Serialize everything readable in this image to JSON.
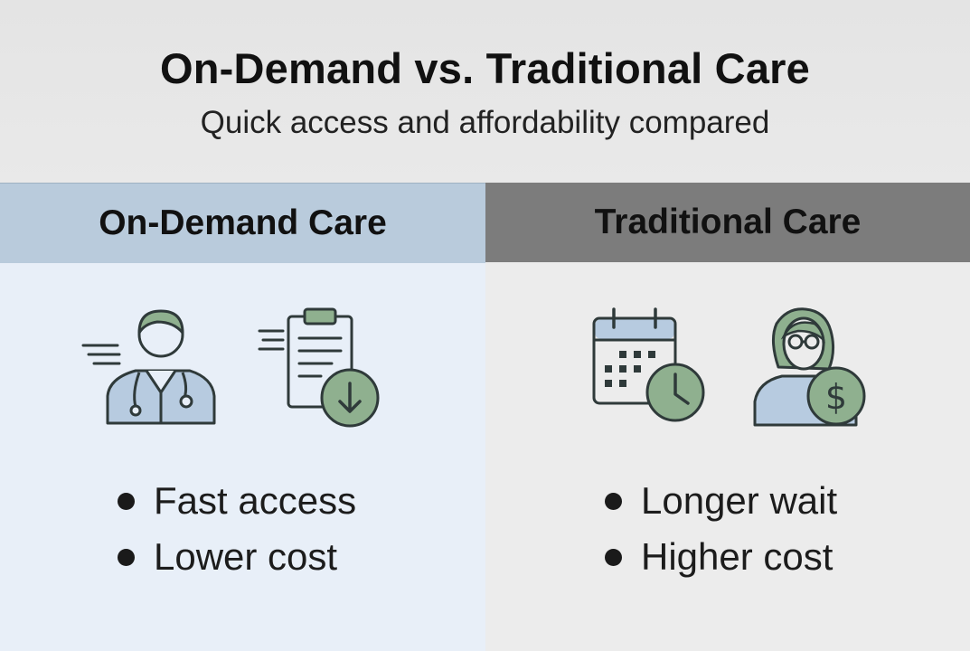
{
  "header": {
    "title": "On-Demand vs. Traditional Care",
    "subtitle": "Quick access and affordability compared"
  },
  "columns": [
    {
      "heading": "On-Demand Care",
      "icons": [
        "doctor-with-stethoscope-icon",
        "clipboard-download-icon"
      ],
      "bullets": [
        "Fast access",
        "Lower cost"
      ],
      "header_bg": "#b9cbdc",
      "body_bg": "#e8eff8"
    },
    {
      "heading": "Traditional Care",
      "icons": [
        "calendar-clock-icon",
        "patient-dollar-icon"
      ],
      "bullets": [
        "Longer wait",
        "Higher cost"
      ],
      "header_bg": "#7c7c7c",
      "body_bg": "#ececec"
    }
  ],
  "colors": {
    "accent_green": "#8fb08f",
    "accent_blue": "#b7cbe0",
    "outline": "#2f3a3a"
  }
}
